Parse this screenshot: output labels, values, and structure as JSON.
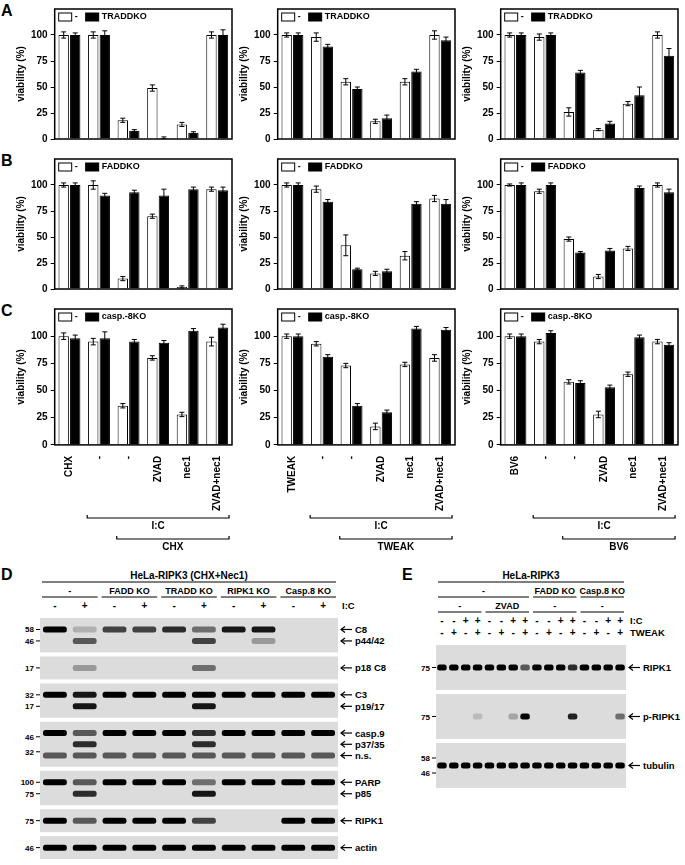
{
  "panel_labels": [
    "A",
    "B",
    "C",
    "D",
    "E"
  ],
  "chart_data": [
    {
      "type": "bar",
      "y_label": "viability (%)",
      "categories": [
        "CHX",
        "-",
        "-",
        "ZVAD",
        "nec1",
        "ZVAD+nec1"
      ],
      "tick_labels": "y",
      "legend": "top-left",
      "grid": false,
      "ylim": [
        0,
        125
      ],
      "yticks": [
        0,
        25,
        50,
        75,
        100
      ],
      "series": [
        {
          "name": "-",
          "color": "#ffffff",
          "values": [
            100,
            100,
            18,
            49,
            14,
            100
          ],
          "errors": [
            3,
            3,
            2,
            3,
            2,
            3
          ]
        },
        {
          "name": "TRADDKO",
          "color": "#000000",
          "values": [
            100,
            100,
            8,
            1,
            6,
            100
          ],
          "errors": [
            2,
            4,
            1,
            1,
            1,
            5
          ]
        }
      ]
    },
    {
      "type": "bar",
      "y_label": "viability (%)",
      "categories": [
        "TWEAK",
        "-",
        "-",
        "ZVAD",
        "nec1",
        "ZVAD+nec1"
      ],
      "tick_labels": "y",
      "legend": "top-left",
      "grid": false,
      "ylim": [
        0,
        125
      ],
      "yticks": [
        0,
        25,
        50,
        75,
        100
      ],
      "series": [
        {
          "name": "-",
          "color": "#ffffff",
          "values": [
            100,
            98,
            55,
            17,
            55,
            100
          ],
          "errors": [
            2,
            4,
            3,
            2,
            3,
            4
          ]
        },
        {
          "name": "TRADDKO",
          "color": "#000000",
          "values": [
            100,
            89,
            48,
            20,
            65,
            95
          ],
          "errors": [
            2,
            2,
            2,
            3,
            2,
            3
          ]
        }
      ]
    },
    {
      "type": "bar",
      "y_label": "viability (%)",
      "categories": [
        "BV6",
        "-",
        "-",
        "ZVAD",
        "nec1",
        "ZVAD+nec1"
      ],
      "tick_labels": "y",
      "legend": "top-left",
      "grid": false,
      "ylim": [
        0,
        125
      ],
      "yticks": [
        0,
        25,
        50,
        75,
        100
      ],
      "series": [
        {
          "name": "-",
          "color": "#ffffff",
          "values": [
            100,
            98,
            26,
            9,
            34,
            100
          ],
          "errors": [
            2,
            3,
            4,
            1,
            2,
            3
          ]
        },
        {
          "name": "TRADDKO",
          "color": "#000000",
          "values": [
            100,
            100,
            64,
            15,
            42,
            80
          ],
          "errors": [
            2,
            2,
            2,
            2,
            8,
            7
          ]
        }
      ]
    },
    {
      "type": "bar",
      "y_label": "viability (%)",
      "categories": [
        "CHX",
        "-",
        "-",
        "ZVAD",
        "nec1",
        "ZVAD+nec1"
      ],
      "tick_labels": "y",
      "legend": "top-left",
      "grid": false,
      "ylim": [
        0,
        125
      ],
      "yticks": [
        0,
        25,
        50,
        75,
        100
      ],
      "series": [
        {
          "name": "-",
          "color": "#ffffff",
          "values": [
            100,
            100,
            10,
            70,
            2,
            96
          ],
          "errors": [
            2,
            4,
            2,
            2,
            1,
            2
          ]
        },
        {
          "name": "FADDKO",
          "color": "#000000",
          "values": [
            100,
            90,
            93,
            90,
            96,
            95
          ],
          "errors": [
            2,
            2,
            2,
            6,
            2,
            3
          ]
        }
      ]
    },
    {
      "type": "bar",
      "y_label": "viability (%)",
      "categories": [
        "TWEAK",
        "-",
        "-",
        "ZVAD",
        "nec1",
        "ZVAD+nec1"
      ],
      "tick_labels": "y",
      "legend": "top-left",
      "grid": false,
      "ylim": [
        0,
        125
      ],
      "yticks": [
        0,
        25,
        50,
        75,
        100
      ],
      "series": [
        {
          "name": "-",
          "color": "#ffffff",
          "values": [
            100,
            96,
            42,
            15,
            32,
            87
          ],
          "errors": [
            2,
            3,
            10,
            2,
            4,
            3
          ]
        },
        {
          "name": "FADDKO",
          "color": "#000000",
          "values": [
            100,
            84,
            19,
            17,
            82,
            82
          ],
          "errors": [
            2,
            2,
            1,
            2,
            2,
            4
          ]
        }
      ]
    },
    {
      "type": "bar",
      "y_label": "viability (%)",
      "categories": [
        "BV6",
        "-",
        "-",
        "ZVAD",
        "nec1",
        "ZVAD+nec1"
      ],
      "tick_labels": "y",
      "legend": "top-left",
      "grid": false,
      "ylim": [
        0,
        125
      ],
      "yticks": [
        0,
        25,
        50,
        75,
        100
      ],
      "series": [
        {
          "name": "-",
          "color": "#ffffff",
          "values": [
            100,
            94,
            48,
            12,
            39,
            100
          ],
          "errors": [
            1,
            2,
            2,
            2,
            2,
            2
          ]
        },
        {
          "name": "FADDKO",
          "color": "#000000",
          "values": [
            100,
            100,
            35,
            37,
            97,
            93
          ],
          "errors": [
            2,
            2,
            1,
            2,
            2,
            3
          ]
        }
      ]
    },
    {
      "type": "bar",
      "y_label": "viability (%)",
      "categories": [
        "CHX",
        "-",
        "-",
        "ZVAD",
        "nec1",
        "ZVAD+nec1"
      ],
      "legend": "top-left",
      "grid": false,
      "ylim": [
        0,
        125
      ],
      "yticks": [
        0,
        25,
        50,
        75,
        100
      ],
      "annotations": [
        {
          "text": "I:C",
          "start": 1,
          "end": 5
        },
        {
          "text": "CHX",
          "start": 2,
          "end": 5
        }
      ],
      "series": [
        {
          "name": "-",
          "color": "#ffffff",
          "values": [
            100,
            95,
            36,
            80,
            28,
            95
          ],
          "errors": [
            3,
            3,
            2,
            2,
            2,
            4
          ]
        },
        {
          "name": "casp.-8KO",
          "color": "#000000",
          "values": [
            98,
            98,
            95,
            94,
            105,
            108
          ],
          "errors": [
            3,
            6,
            2,
            2,
            2,
            3
          ]
        }
      ]
    },
    {
      "type": "bar",
      "y_label": "viability (%)",
      "categories": [
        "TWEAK",
        "-",
        "-",
        "ZVAD",
        "nec1",
        "ZVAD+nec1"
      ],
      "legend": "top-left",
      "grid": false,
      "ylim": [
        0,
        125
      ],
      "yticks": [
        0,
        25,
        50,
        75,
        100
      ],
      "annotations": [
        {
          "text": "I:C",
          "start": 1,
          "end": 5
        },
        {
          "text": "TWEAK",
          "start": 2,
          "end": 5
        }
      ],
      "series": [
        {
          "name": "-",
          "color": "#ffffff",
          "values": [
            100,
            93,
            73,
            17,
            74,
            80
          ],
          "errors": [
            2,
            2,
            2,
            3,
            2,
            3
          ]
        },
        {
          "name": "casp.-8KO",
          "color": "#000000",
          "values": [
            100,
            81,
            36,
            30,
            107,
            106
          ],
          "errors": [
            2,
            2,
            2,
            2,
            2,
            2
          ]
        }
      ]
    },
    {
      "type": "bar",
      "y_label": "viability (%)",
      "categories": [
        "BV6",
        "-",
        "-",
        "ZVAD",
        "nec1",
        "ZVAD+nec1"
      ],
      "legend": "top-left",
      "grid": false,
      "ylim": [
        0,
        125
      ],
      "yticks": [
        0,
        25,
        50,
        75,
        100
      ],
      "annotations": [
        {
          "text": "I:C",
          "start": 1,
          "end": 5
        },
        {
          "text": "BV6",
          "start": 2,
          "end": 5
        }
      ],
      "series": [
        {
          "name": "-",
          "color": "#ffffff",
          "values": [
            100,
            95,
            58,
            28,
            65,
            95
          ],
          "errors": [
            2,
            2,
            2,
            3,
            2,
            2
          ]
        },
        {
          "name": "casp.-8KO",
          "color": "#000000",
          "values": [
            100,
            103,
            57,
            53,
            99,
            92
          ],
          "errors": [
            2,
            2,
            2,
            2,
            2,
            2
          ]
        }
      ]
    }
  ],
  "blots": [
    {
      "title": "HeLa-RIPK3 (CHX+Nec1)",
      "headers": [
        [
          {
            "text": "-",
            "span": 2
          },
          {
            "text": "FADD KO",
            "span": 2
          },
          {
            "text": "TRADD KO",
            "span": 2
          },
          {
            "text": "RIPK1 KO",
            "span": 2
          },
          {
            "text": "Casp.8 KO",
            "span": 2
          }
        ]
      ],
      "treatments": [
        {
          "label": "I:C",
          "lanes": [
            "-",
            "+",
            "-",
            "+",
            "-",
            "+",
            "-",
            "+",
            "-",
            "+"
          ]
        }
      ],
      "strips": [
        {
          "markers": [
            58,
            46
          ],
          "bands": [
            {
              "label": "C8",
              "lanes": [
                1,
                0.2,
                0.7,
                0.7,
                0.8,
                0.5,
                0.9,
                0.9,
                0,
                0
              ]
            },
            {
              "label": "p44/42",
              "lanes": [
                0,
                0.6,
                0,
                0,
                0,
                0.7,
                0,
                0.3,
                0,
                0
              ]
            }
          ]
        },
        {
          "markers": [
            17
          ],
          "bands": [
            {
              "label": "p18 C8",
              "lanes": [
                0,
                0.3,
                0,
                0,
                0,
                0.5,
                0,
                0,
                0,
                0
              ]
            }
          ]
        },
        {
          "markers": [
            32,
            17
          ],
          "bands": [
            {
              "label": "C3",
              "lanes": [
                1,
                0.9,
                1,
                1,
                1,
                1,
                1,
                1,
                1,
                1
              ]
            },
            {
              "label": "p19/17",
              "lanes": [
                0,
                0.9,
                0,
                0,
                0,
                0.9,
                0,
                0,
                0,
                0
              ]
            }
          ]
        },
        {
          "markers": [
            46,
            32
          ],
          "bands": [
            {
              "label": "casp.9",
              "lanes": [
                1,
                0.6,
                1,
                1,
                1,
                0.8,
                1,
                1,
                1,
                1
              ]
            },
            {
              "label": "p37/35",
              "lanes": [
                0,
                0.8,
                0,
                0,
                0,
                0.8,
                0,
                0,
                0,
                0
              ]
            },
            {
              "label": "n.s.",
              "lanes": [
                0.6,
                0.6,
                0.6,
                0.6,
                0.6,
                0.6,
                0.6,
                0.6,
                0.6,
                0.6
              ]
            }
          ]
        },
        {
          "markers": [
            100,
            75
          ],
          "bands": [
            {
              "label": "PARP",
              "lanes": [
                1,
                0.6,
                1,
                1,
                1,
                0.5,
                1,
                1,
                1,
                1
              ]
            },
            {
              "label": "p85",
              "lanes": [
                0,
                0.8,
                0,
                0,
                0,
                0.9,
                0,
                0,
                0,
                0
              ]
            }
          ]
        },
        {
          "markers": [
            75
          ],
          "bands": [
            {
              "label": "RIPK1",
              "lanes": [
                1,
                0.6,
                1,
                1,
                1,
                0.7,
                0,
                0,
                1,
                1
              ]
            }
          ]
        },
        {
          "markers": [
            46
          ],
          "bands": [
            {
              "label": "actin",
              "lanes": [
                1,
                1,
                1,
                1,
                1,
                1,
                1,
                1,
                1,
                1
              ]
            }
          ]
        }
      ]
    },
    {
      "title": "HeLa-RIPK3",
      "headers": [
        [
          {
            "text": "-",
            "span": 8
          },
          {
            "text": "FADD KO",
            "span": 4
          },
          {
            "text": "Casp.8 KO",
            "span": 4
          }
        ],
        [
          {
            "text": "-",
            "span": 4
          },
          {
            "text": "ZVAD",
            "span": 4
          },
          {
            "text": "-",
            "span": 4
          },
          {
            "text": "-",
            "span": 4
          }
        ]
      ],
      "treatments": [
        {
          "label": "I:C",
          "lanes": [
            "-",
            "-",
            "+",
            "+",
            "-",
            "-",
            "+",
            "+",
            "-",
            "-",
            "+",
            "+",
            "-",
            "-",
            "+",
            "+"
          ]
        },
        {
          "label": "TWEAK",
          "lanes": [
            "-",
            "+",
            "-",
            "+",
            "-",
            "+",
            "-",
            "+",
            "-",
            "+",
            "-",
            "+",
            "-",
            "+",
            "-",
            "+"
          ]
        }
      ],
      "strips": [
        {
          "markers": [
            75
          ],
          "bands": [
            {
              "label": "RIPK1",
              "lanes": [
                1,
                1,
                1,
                1,
                1,
                1,
                1,
                0.6,
                1,
                1,
                1,
                0.8,
                1,
                1,
                1,
                1
              ]
            }
          ]
        },
        {
          "markers": [
            75
          ],
          "bands": [
            {
              "label": "p-RIPK1",
              "lanes": [
                0,
                0,
                0,
                0.15,
                0,
                0,
                0.25,
                1,
                0,
                0,
                0,
                0.85,
                0,
                0,
                0,
                0.5
              ]
            }
          ]
        },
        {
          "markers": [
            58,
            46
          ],
          "bands": [
            {
              "label": "tubulin",
              "lanes": [
                1,
                1,
                1,
                1,
                1,
                1,
                1,
                1,
                1,
                1,
                1,
                1,
                1,
                1,
                1,
                1
              ]
            }
          ]
        }
      ]
    }
  ]
}
